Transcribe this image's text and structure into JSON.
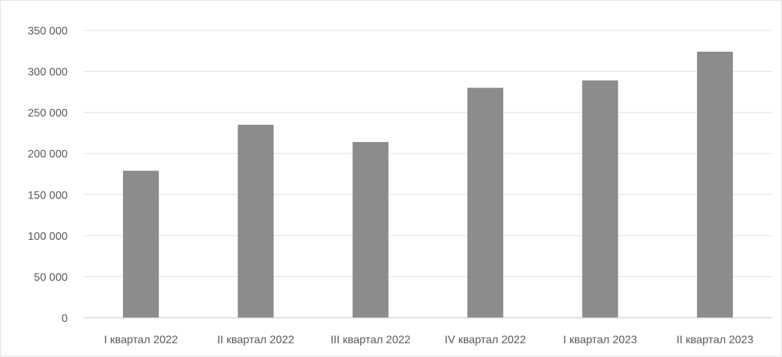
{
  "chart_data": {
    "type": "bar",
    "categories": [
      "I  квартал 2022",
      "II квартал 2022",
      "III квартал 2022",
      "IV квартал 2022",
      "I  квартал 2023",
      "II квартал 2023"
    ],
    "values": [
      179000,
      235000,
      214000,
      280000,
      289000,
      324000
    ],
    "ylim": [
      0,
      350000
    ],
    "yticks": [
      0,
      50000,
      100000,
      150000,
      200000,
      250000,
      300000,
      350000
    ],
    "ytick_labels": [
      "0",
      "50 000",
      "100 000",
      "150 000",
      "200 000",
      "250 000",
      "300 000",
      "350 000"
    ],
    "bar_color": "#8c8c8c",
    "grid": true,
    "legend": "none"
  }
}
